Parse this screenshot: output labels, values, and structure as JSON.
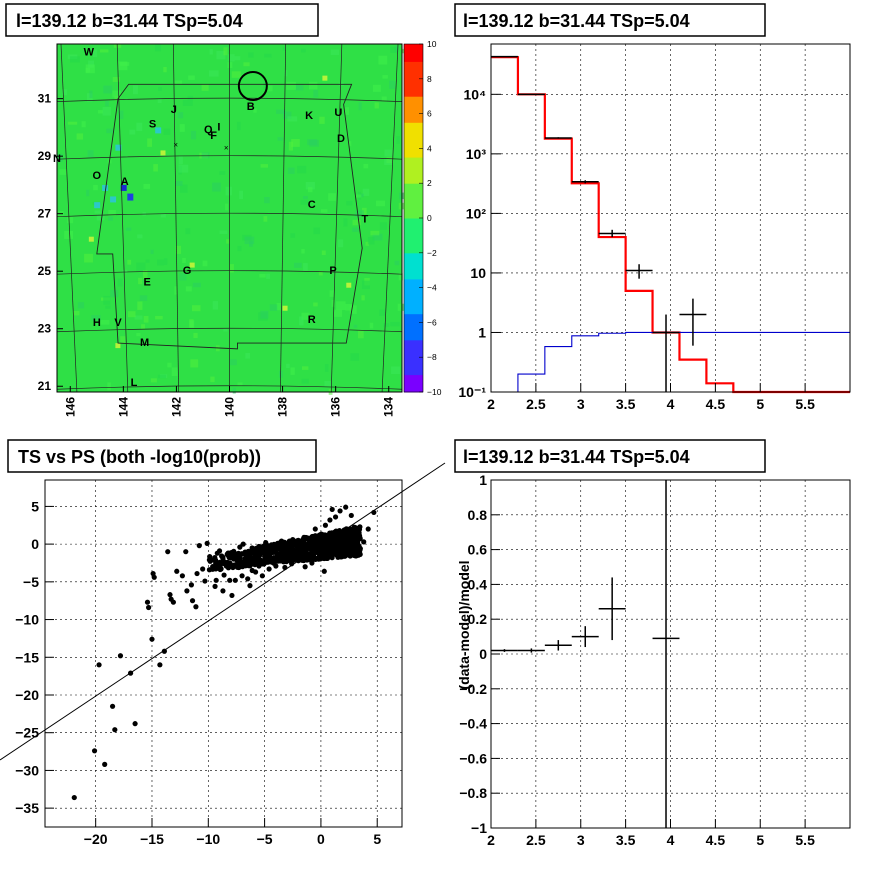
{
  "chart_data": [
    {
      "type": "heatmap",
      "title": "l=139.12 b=31.44 TSp=5.04",
      "xlabel": "",
      "ylabel": "",
      "xlim": [
        146.5,
        133.5
      ],
      "ylim": [
        20.8,
        32.9
      ],
      "x_ticks": [
        "146",
        "144",
        "142",
        "140",
        "138",
        "136",
        "134"
      ],
      "y_ticks": [
        "21",
        "23",
        "25",
        "27",
        "29",
        "31"
      ],
      "colorbar": {
        "range": [
          -10,
          10
        ],
        "ticks": [
          "10",
          "8",
          "6",
          "4",
          "2",
          "0",
          "−2",
          "−4",
          "−6",
          "−8",
          "−10"
        ]
      },
      "labels": [
        {
          "text": "W",
          "x": 145.3,
          "y": 32.5
        },
        {
          "text": "B",
          "x": 139.2,
          "y": 30.6
        },
        {
          "text": "J",
          "x": 142.1,
          "y": 30.5
        },
        {
          "text": "K",
          "x": 137.0,
          "y": 30.3
        },
        {
          "text": "U",
          "x": 135.9,
          "y": 30.4
        },
        {
          "text": "S",
          "x": 142.9,
          "y": 30.0
        },
        {
          "text": "Q",
          "x": 140.8,
          "y": 29.8
        },
        {
          "text": "I",
          "x": 140.4,
          "y": 29.9
        },
        {
          "text": "F",
          "x": 140.6,
          "y": 29.6
        },
        {
          "text": "D",
          "x": 135.8,
          "y": 29.5
        },
        {
          "text": "N",
          "x": 146.5,
          "y": 28.8
        },
        {
          "text": "O",
          "x": 145.0,
          "y": 28.2
        },
        {
          "text": "A",
          "x": 143.95,
          "y": 28.0
        },
        {
          "text": "C",
          "x": 136.9,
          "y": 27.2
        },
        {
          "text": "T",
          "x": 134.9,
          "y": 26.7
        },
        {
          "text": "G",
          "x": 141.6,
          "y": 24.9
        },
        {
          "text": "E",
          "x": 143.1,
          "y": 24.5
        },
        {
          "text": "P",
          "x": 136.1,
          "y": 24.9
        },
        {
          "text": "H",
          "x": 145.0,
          "y": 23.1
        },
        {
          "text": "V",
          "x": 144.2,
          "y": 23.1
        },
        {
          "text": "R",
          "x": 136.9,
          "y": 23.2
        },
        {
          "text": "M",
          "x": 143.2,
          "y": 22.4
        },
        {
          "text": "L",
          "x": 143.6,
          "y": 21.0
        }
      ]
    },
    {
      "type": "line",
      "title": "l=139.12 b=31.44 TSp=5.04",
      "xlabel": "",
      "ylabel": "",
      "xlim": [
        2,
        6
      ],
      "ylim": [
        0.1,
        70000
      ],
      "yscale": "log",
      "x_ticks": [
        "2",
        "2.5",
        "3",
        "3.5",
        "4",
        "4.5",
        "5",
        "5.5"
      ],
      "y_ticks": [
        "10⁻¹",
        "1",
        "10",
        "10²",
        "10³",
        "10⁴"
      ],
      "bin_edges": [
        2.0,
        2.3,
        2.6,
        2.9,
        3.2,
        3.5,
        3.8,
        4.1,
        4.4,
        4.7,
        5.0,
        5.3,
        5.6,
        5.9,
        6.0
      ],
      "series": [
        {
          "color": "#ff0000",
          "values": [
            42000,
            10000,
            1800,
            320,
            40,
            5,
            1.0,
            0.35,
            0.14,
            0.1,
            0.1,
            0.1,
            0.1,
            0.1
          ]
        },
        {
          "color": "#0000cc",
          "values": [
            0.1,
            0.2,
            0.58,
            0.88,
            0.97,
            1.0,
            1.0,
            1.0,
            1.0,
            1.0,
            1.0,
            1.0,
            1.0,
            1.0
          ]
        }
      ],
      "points": [
        {
          "x": 2.15,
          "y": 43000,
          "ylo": 42500,
          "yhi": 43500
        },
        {
          "x": 2.45,
          "y": 10000,
          "ylo": 9900,
          "yhi": 10100
        },
        {
          "x": 2.75,
          "y": 1850,
          "ylo": 1800,
          "yhi": 1900
        },
        {
          "x": 3.05,
          "y": 340,
          "ylo": 320,
          "yhi": 360
        },
        {
          "x": 3.35,
          "y": 46,
          "ylo": 40,
          "yhi": 53
        },
        {
          "x": 3.65,
          "y": 11,
          "ylo": 8,
          "yhi": 14
        },
        {
          "x": 3.95,
          "y": 1.0,
          "ylo": 0.05,
          "yhi": 2.0
        },
        {
          "x": 4.25,
          "y": 2.0,
          "ylo": 0.6,
          "yhi": 3.7
        }
      ]
    },
    {
      "type": "scatter",
      "title": "TS vs PS (both -log10(prob))",
      "xlabel": "",
      "ylabel": "",
      "xlim": [
        -24.5,
        7.2
      ],
      "ylim": [
        -37.5,
        8.5
      ],
      "x_ticks": [
        "−20",
        "−15",
        "−10",
        "−5",
        "0",
        "5"
      ],
      "y_ticks": [
        "5",
        "0",
        "−5",
        "−10",
        "−15",
        "−20",
        "−25",
        "−30",
        "−35"
      ],
      "diagonal": [
        [
          -30,
          -30
        ],
        [
          10,
          10
        ]
      ],
      "sparse_points": [
        [
          -21.9,
          -33.6
        ],
        [
          -20.1,
          -27.4
        ],
        [
          -19.7,
          -16
        ],
        [
          -19.2,
          -29.2
        ],
        [
          -18.5,
          -21.5
        ],
        [
          -18.3,
          -24.6
        ],
        [
          -17.8,
          -14.8
        ],
        [
          -16.9,
          -17.1
        ],
        [
          -16.5,
          -23.8
        ],
        [
          -15.4,
          -7.7
        ],
        [
          -15.3,
          -8.4
        ],
        [
          -15.0,
          -12.6
        ],
        [
          -14.9,
          -3.9
        ],
        [
          -14.8,
          -4.4
        ],
        [
          -14.3,
          -16.0
        ],
        [
          -13.9,
          -14.2
        ],
        [
          -13.6,
          -1.0
        ],
        [
          -13.4,
          -6.7
        ],
        [
          -13.3,
          -7.3
        ],
        [
          -13.1,
          -7.7
        ],
        [
          -12.8,
          -3.6
        ],
        [
          -12.3,
          -4.2
        ],
        [
          -12.0,
          -1.0
        ],
        [
          -11.9,
          -6.2
        ],
        [
          -11.5,
          -5.4
        ],
        [
          -11.4,
          -7.5
        ],
        [
          -11.1,
          -8.3
        ],
        [
          -11.0,
          -3.9
        ],
        [
          -10.5,
          -3.3
        ],
        [
          -10.3,
          -4.9
        ],
        [
          -9.9,
          -3.4
        ],
        [
          -9.6,
          -2.1
        ],
        [
          -9.4,
          -5.6
        ],
        [
          -9.3,
          -4.8
        ],
        [
          -9.0,
          -0.9
        ],
        [
          -8.9,
          -3.2
        ],
        [
          -8.7,
          -6.2
        ],
        [
          -8.6,
          -4.1
        ],
        [
          -8.4,
          -2.9
        ],
        [
          -8.1,
          -4.8
        ],
        [
          -7.9,
          -6.8
        ],
        [
          -7.6,
          -4.8
        ],
        [
          -7.3,
          -3.1
        ],
        [
          -7.0,
          -4.2
        ],
        [
          -6.8,
          -2.7
        ],
        [
          -6.5,
          -4.6
        ],
        [
          -6.3,
          -5.5
        ],
        [
          -6.1,
          -3.5
        ],
        [
          -5.8,
          -3.7
        ],
        [
          -5.5,
          -2.9
        ],
        [
          -5.2,
          -4.2
        ],
        [
          -9.2,
          -1.2
        ],
        [
          -8.3,
          -1.4
        ],
        [
          -7.8,
          -1.6
        ],
        [
          -7.2,
          -0.4
        ],
        [
          -6.7,
          -1.1
        ],
        [
          -6.4,
          -2.0
        ],
        [
          -5.9,
          -0.9
        ],
        [
          -5.6,
          -1.8
        ],
        [
          -5.3,
          -0.5
        ],
        [
          -5.0,
          -1.6
        ],
        [
          -4.8,
          -2.4
        ],
        [
          -4.6,
          -3.3
        ],
        [
          -4.4,
          -0.9
        ],
        [
          -4.2,
          -1.8
        ],
        [
          -4.0,
          -2.9
        ],
        [
          -3.8,
          -0.6
        ],
        [
          -3.6,
          -2.1
        ],
        [
          -3.4,
          -1.2
        ],
        [
          -3.2,
          -3.1
        ],
        [
          -3.0,
          -0.3
        ],
        [
          -2.8,
          -1.7
        ],
        [
          -2.6,
          -2.6
        ],
        [
          -2.4,
          -0.8
        ],
        [
          -2.2,
          -1.5
        ],
        [
          -2.0,
          -2.2
        ],
        [
          -1.8,
          -0.4
        ],
        [
          -1.6,
          -1.1
        ],
        [
          -1.4,
          -3.0
        ],
        [
          -1.2,
          -1.9
        ],
        [
          -1.0,
          -0.6
        ],
        [
          -0.8,
          -2.5
        ],
        [
          -0.6,
          -1.3
        ],
        [
          -0.4,
          -0.2
        ],
        [
          -0.2,
          -2.0
        ],
        [
          0.0,
          -1.0
        ],
        [
          0.3,
          -3.6
        ],
        [
          0.6,
          -0.4
        ],
        [
          0.9,
          -1.7
        ],
        [
          1.2,
          0.6
        ],
        [
          1.5,
          -0.9
        ],
        [
          1.8,
          1.1
        ],
        [
          2.0,
          -0.2
        ],
        [
          2.3,
          0.4
        ],
        [
          2.6,
          2.0
        ],
        [
          2.9,
          0.8
        ],
        [
          3.2,
          1.4
        ],
        [
          3.5,
          -0.6
        ],
        [
          3.8,
          0.3
        ],
        [
          4.2,
          2.0
        ],
        [
          4.7,
          4.2
        ],
        [
          -10.8,
          -0.2
        ],
        [
          -10.1,
          0.1
        ],
        [
          -6.9,
          0.0
        ],
        [
          -4.9,
          0.2
        ],
        [
          -3.5,
          0.4
        ],
        [
          -2.5,
          0.6
        ],
        [
          -1.5,
          0.9
        ],
        [
          0.4,
          2.5
        ],
        [
          0.8,
          3.2
        ],
        [
          1.3,
          3.6
        ],
        [
          1.7,
          4.4
        ],
        [
          2.2,
          4.9
        ],
        [
          2.7,
          3.8
        ],
        [
          1.0,
          4.6
        ],
        [
          -0.5,
          2.0
        ]
      ],
      "dense_region": {
        "x": [
          -12,
          4.5
        ],
        "y": [
          -5,
          5
        ]
      }
    },
    {
      "type": "scatter",
      "title": "l=139.12 b=31.44 TSp=5.04",
      "xlabel": "",
      "ylabel": "(data-model)/model",
      "xlim": [
        2,
        6
      ],
      "ylim": [
        -1,
        1
      ],
      "x_ticks": [
        "2",
        "2.5",
        "3",
        "3.5",
        "4",
        "4.5",
        "5",
        "5.5"
      ],
      "y_ticks": [
        "1",
        "0.8",
        "0.6",
        "0.4",
        "0.2",
        "0",
        "−0.2",
        "−0.4",
        "−0.6",
        "−0.8",
        "−1"
      ],
      "points": [
        {
          "x": 2.15,
          "y": 0.02,
          "yerr": 0.008,
          "xerr": 0.15
        },
        {
          "x": 2.45,
          "y": 0.02,
          "yerr": 0.012,
          "xerr": 0.15
        },
        {
          "x": 2.75,
          "y": 0.05,
          "yerr": 0.03,
          "xerr": 0.15
        },
        {
          "x": 3.05,
          "y": 0.1,
          "yerr": 0.06,
          "xerr": 0.15
        },
        {
          "x": 3.35,
          "y": 0.26,
          "yerr": 0.18,
          "xerr": 0.15
        },
        {
          "x": 3.95,
          "y": 0.09,
          "yerr": 1.2,
          "xerr": 0.15
        }
      ]
    }
  ]
}
